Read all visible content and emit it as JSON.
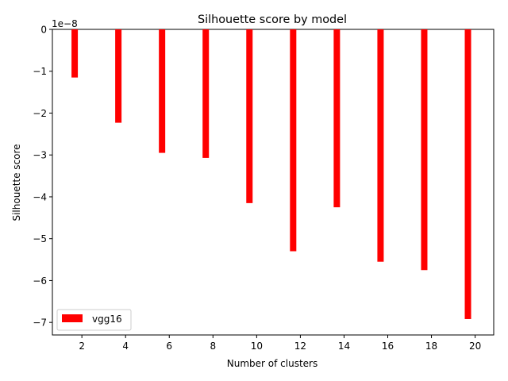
{
  "chart_data": {
    "type": "bar",
    "title": "Silhouette score by model",
    "xlabel": "Number of clusters",
    "ylabel": "Silhouette score",
    "offset_text": "1e−8",
    "x": [
      1.67,
      3.67,
      5.67,
      7.67,
      9.67,
      11.67,
      13.67,
      15.67,
      17.67,
      19.67
    ],
    "series": [
      {
        "name": "vgg16",
        "color": "#ff0000",
        "values": [
          -1.15,
          -2.23,
          -2.95,
          -3.07,
          -4.15,
          -5.3,
          -4.25,
          -5.55,
          -5.75,
          -6.92
        ]
      }
    ],
    "xlim": [
      0.65,
      20.85
    ],
    "ylim": [
      -7.3,
      0
    ],
    "xticks": [
      2,
      4,
      6,
      8,
      10,
      12,
      14,
      16,
      18,
      20
    ],
    "xtick_labels": [
      "2",
      "4",
      "6",
      "8",
      "10",
      "12",
      "14",
      "16",
      "18",
      "20"
    ],
    "yticks": [
      0,
      -1,
      -2,
      -3,
      -4,
      -5,
      -6,
      -7
    ],
    "ytick_labels": [
      "0",
      "−1",
      "−2",
      "−3",
      "−4",
      "−5",
      "−6",
      "−7"
    ],
    "grid": false,
    "legend_position": "lower-left"
  }
}
